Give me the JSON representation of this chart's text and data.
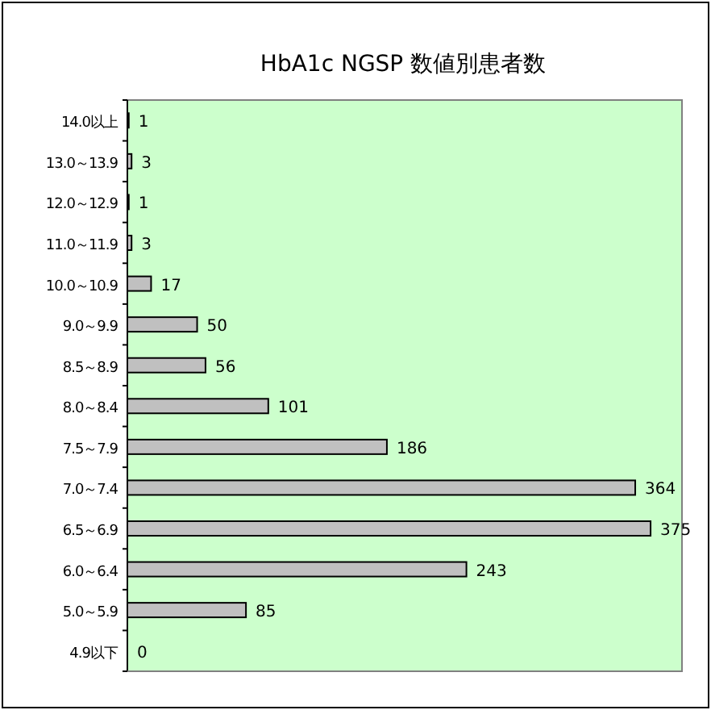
{
  "chart_data": {
    "type": "bar",
    "orientation": "horizontal",
    "title": "HbA1c NGSP 数値別患者数",
    "categories": [
      "14.0以上",
      "13.0～13.9",
      "12.0～12.9",
      "11.0～11.9",
      "10.0～10.9",
      "9.0～9.9",
      "8.5～8.9",
      "8.0～8.4",
      "7.5～7.9",
      "7.0～7.4",
      "6.5～6.9",
      "6.0～6.4",
      "5.0～5.9",
      "4.9以下"
    ],
    "values": [
      1,
      3,
      1,
      3,
      17,
      50,
      56,
      101,
      186,
      364,
      375,
      243,
      85,
      0
    ],
    "color": "#c0c0c0",
    "data_labels": true
  }
}
